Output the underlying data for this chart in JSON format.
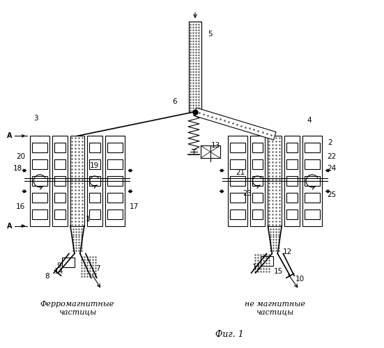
{
  "bg_color": "#ffffff",
  "line_color": "#000000",
  "title": "Фиг. 1",
  "label_ferro": "Ферромагнитные\nчастицы",
  "label_nonmag": "не магнитные\nчастицы"
}
